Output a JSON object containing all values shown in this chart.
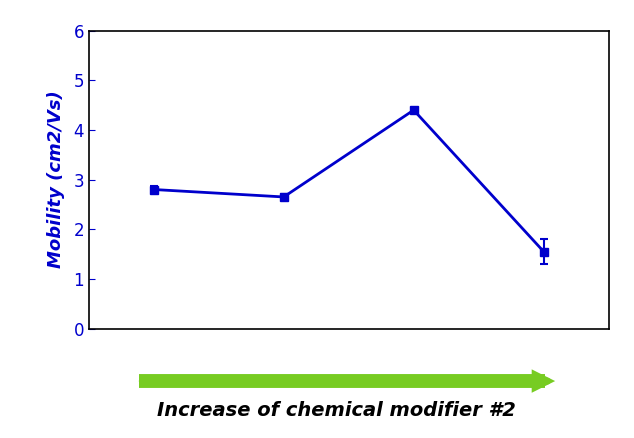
{
  "x": [
    1,
    2,
    3,
    4
  ],
  "y": [
    2.8,
    2.65,
    4.4,
    1.55
  ],
  "yerr": [
    0.07,
    0.05,
    0.04,
    0.25
  ],
  "ylim": [
    0,
    6
  ],
  "yticks": [
    0,
    1,
    2,
    3,
    4,
    5,
    6
  ],
  "ylabel": "Mobility (cm2/Vs)",
  "xlabel": "Increase of chemical modifier #2",
  "line_color": "#0000CC",
  "marker": "s",
  "marker_size": 6,
  "line_width": 2.0,
  "ylabel_color": "#0000CC",
  "xlabel_color": "#000000",
  "ytick_color": "#0000CC",
  "arrow_color": "#77CC22",
  "background_color": "#ffffff",
  "axis_fontsize": 13,
  "xlabel_fontsize": 14
}
